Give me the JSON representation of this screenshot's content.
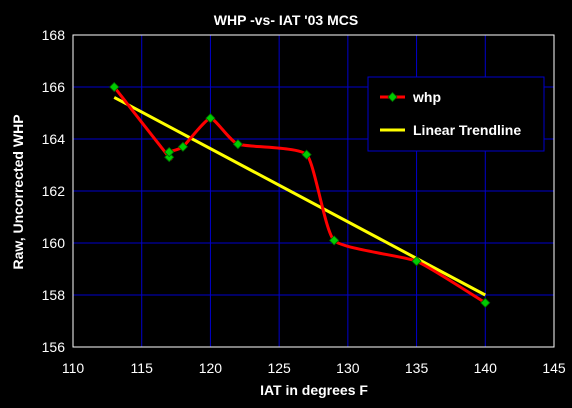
{
  "chart_data": {
    "type": "line",
    "title": "WHP -vs- IAT '03 MCS",
    "xlabel": "IAT in degrees F",
    "ylabel": "Raw, Uncorrected WHP",
    "xlim": [
      110,
      145
    ],
    "ylim": [
      156,
      168
    ],
    "xticks": [
      110,
      115,
      120,
      125,
      130,
      135,
      140,
      145
    ],
    "yticks": [
      156,
      158,
      160,
      162,
      164,
      166,
      168
    ],
    "grid": true,
    "legend_position": "top-right",
    "series": [
      {
        "name": "whp",
        "style": "smooth-line-with-markers",
        "color": "#ff0000",
        "marker_color": "#00cc00",
        "x": [
          113,
          117,
          117,
          118,
          120,
          122,
          127,
          129,
          135,
          140
        ],
        "y": [
          166.0,
          163.3,
          163.5,
          163.7,
          164.8,
          163.8,
          163.4,
          160.1,
          159.3,
          157.7
        ]
      },
      {
        "name": "Linear Trendline",
        "style": "straight-line",
        "color": "#ffff00",
        "x": [
          113,
          140
        ],
        "y": [
          165.6,
          158.0
        ]
      }
    ]
  },
  "colors": {
    "background": "#000000",
    "plot_border": "#ffffff",
    "grid": "#0000cc",
    "legend_border": "#0000cc",
    "text": "#ffffff"
  }
}
